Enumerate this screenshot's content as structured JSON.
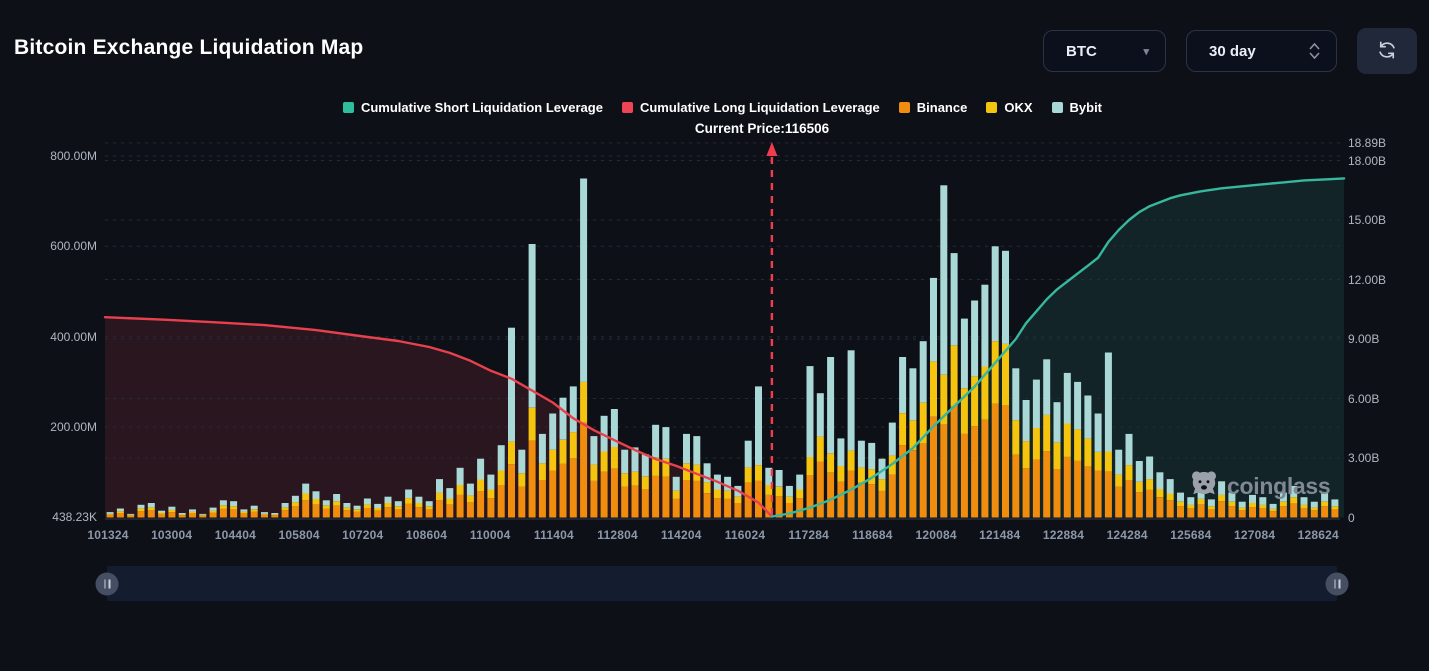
{
  "header": {
    "title": "Bitcoin Exchange Liquidation Map",
    "coin_select": {
      "value": "BTC"
    },
    "period_select": {
      "value": "30 day"
    }
  },
  "legend": {
    "items": [
      {
        "label": "Cumulative Short Liquidation Leverage",
        "color": "#2ebd9d"
      },
      {
        "label": "Cumulative Long Liquidation Leverage",
        "color": "#ef4455"
      },
      {
        "label": "Binance",
        "color": "#f18d0e"
      },
      {
        "label": "OKX",
        "color": "#f5c40f"
      },
      {
        "label": "Bybit",
        "color": "#a9d8d6"
      }
    ]
  },
  "watermark": {
    "text": "coinglass"
  },
  "colors": {
    "background": "#0d1117",
    "accent_red": "#f23c4d"
  },
  "chart_data": {
    "type": "bar",
    "title": "Bitcoin Exchange Liquidation Map",
    "current_price_label": "Current Price:116506",
    "current_price": 116506,
    "current_price_index": 64.3,
    "x_tick_labels": [
      "101324",
      "103004",
      "104404",
      "105804",
      "107204",
      "108604",
      "110004",
      "111404",
      "112804",
      "114204",
      "116024",
      "117284",
      "118684",
      "120084",
      "121484",
      "122884",
      "124284",
      "125684",
      "127084",
      "128624"
    ],
    "left_axis": {
      "labels": [
        "800.00M",
        "600.00M",
        "400.00M",
        "200.00M",
        "438.23K"
      ],
      "values_M": [
        800,
        600,
        400,
        200,
        0.44
      ]
    },
    "right_axis": {
      "labels": [
        "18.89B",
        "18.00B",
        "15.00B",
        "12.00B",
        "9.00B",
        "6.00B",
        "3.00B",
        "0"
      ],
      "values_B": [
        18.89,
        18,
        15,
        12,
        9,
        6,
        3,
        0
      ]
    },
    "grid_left_M": [
      800,
      600,
      400,
      200
    ],
    "grid_right_B": [
      18.89,
      18,
      15,
      12,
      9,
      6,
      3
    ],
    "ylim_left_M": [
      0,
      830
    ],
    "ylim_right_B": [
      0,
      18.89
    ],
    "series": [
      {
        "name": "Binance",
        "color": "#f18d0e",
        "values": [
          6,
          10,
          4,
          14,
          16,
          8,
          12,
          5,
          9,
          4,
          11,
          19,
          18,
          9,
          13,
          6,
          5,
          16,
          24,
          38,
          29,
          19,
          26,
          16,
          13,
          21,
          15,
          23,
          18,
          31,
          23,
          18,
          38,
          29,
          50,
          34,
          58,
          43,
          72,
          118,
          68,
          170,
          83,
          104,
          119,
          131,
          210,
          81,
          101,
          108,
          68,
          70,
          63,
          92,
          90,
          41,
          83,
          81,
          54,
          43,
          41,
          32,
          77,
          81,
          50,
          47,
          32,
          43,
          94,
          124,
          99,
          79,
          104,
          77,
          74,
          59,
          95,
          160,
          149,
          164,
          223,
          206,
          246,
          185,
          202,
          216,
          252,
          248,
          139,
          109,
          128,
          147,
          107,
          134,
          126,
          113,
          104,
          102,
          68,
          83,
          56,
          61,
          45,
          38,
          25,
          20,
          29,
          18,
          36,
          25,
          16,
          23,
          20,
          14,
          25,
          32,
          20,
          16,
          25,
          18
        ]
      },
      {
        "name": "OKX",
        "color": "#f5c40f",
        "values": [
          2,
          4,
          2,
          6,
          6,
          3,
          5,
          2,
          4,
          2,
          4,
          8,
          7,
          4,
          5,
          2,
          2,
          6,
          10,
          15,
          12,
          8,
          10,
          6,
          5,
          8,
          6,
          9,
          7,
          12,
          9,
          7,
          17,
          13,
          22,
          15,
          26,
          19,
          32,
          50,
          30,
          73,
          37,
          46,
          53,
          58,
          90,
          36,
          45,
          48,
          30,
          31,
          28,
          41,
          40,
          18,
          37,
          36,
          24,
          19,
          18,
          14,
          34,
          35,
          22,
          21,
          14,
          19,
          40,
          55,
          43,
          35,
          44,
          34,
          33,
          26,
          42,
          71,
          66,
          90,
          122,
          110,
          135,
          101,
          110,
          118,
          138,
          136,
          76,
          60,
          70,
          80,
          59,
          74,
          69,
          62,
          41,
          44,
          27,
          33,
          23,
          24,
          18,
          15,
          10,
          8,
          12,
          7,
          14,
          10,
          6,
          9,
          8,
          5,
          10,
          13,
          8,
          6,
          10,
          7
        ]
      },
      {
        "name": "Bybit",
        "color": "#a9d8d6",
        "values": [
          4,
          6,
          2,
          8,
          10,
          4,
          7,
          3,
          5,
          2,
          7,
          11,
          11,
          5,
          8,
          4,
          3,
          10,
          14,
          22,
          17,
          11,
          16,
          10,
          8,
          13,
          9,
          14,
          11,
          19,
          14,
          11,
          30,
          23,
          38,
          26,
          46,
          33,
          56,
          252,
          52,
          362,
          65,
          80,
          93,
          101,
          450,
          63,
          79,
          84,
          52,
          54,
          49,
          72,
          70,
          31,
          65,
          63,
          42,
          33,
          31,
          24,
          59,
          174,
          38,
          37,
          24,
          33,
          201,
          96,
          213,
          61,
          222,
          59,
          58,
          45,
          73,
          124,
          115,
          136,
          185,
          419,
          204,
          154,
          168,
          181,
          210,
          206,
          115,
          91,
          107,
          123,
          89,
          112,
          105,
          95,
          85,
          219,
          55,
          69,
          46,
          50,
          37,
          32,
          20,
          17,
          24,
          15,
          30,
          20,
          13,
          18,
          17,
          11,
          20,
          25,
          17,
          13,
          20,
          15
        ]
      }
    ],
    "lines": [
      {
        "name": "Cumulative Long Liquidation Leverage",
        "color": "#e8414d",
        "fill": "rgba(232,65,77,0.13)",
        "axis": "right",
        "points": [
          [
            -0.5,
            10.1
          ],
          [
            5,
            9.98
          ],
          [
            10,
            9.85
          ],
          [
            15,
            9.7
          ],
          [
            20,
            9.45
          ],
          [
            25,
            9.1
          ],
          [
            28,
            8.9
          ],
          [
            31,
            8.6
          ],
          [
            33,
            8.3
          ],
          [
            35,
            7.9
          ],
          [
            37,
            7.4
          ],
          [
            39,
            7.0
          ],
          [
            41,
            6.4
          ],
          [
            43,
            5.8
          ],
          [
            45,
            5.0
          ],
          [
            47,
            4.4
          ],
          [
            49,
            3.9
          ],
          [
            51,
            3.4
          ],
          [
            53,
            2.95
          ],
          [
            55,
            2.6
          ],
          [
            57,
            2.2
          ],
          [
            59,
            1.8
          ],
          [
            61,
            1.35
          ],
          [
            63,
            0.75
          ],
          [
            64.3,
            0.05
          ]
        ]
      },
      {
        "name": "Cumulative Short Liquidation Leverage",
        "color": "#37b79e",
        "fill": "rgba(55,183,158,0.12)",
        "axis": "right",
        "points": [
          [
            64.3,
            0.05
          ],
          [
            66,
            0.2
          ],
          [
            68,
            0.5
          ],
          [
            70,
            0.9
          ],
          [
            72,
            1.4
          ],
          [
            74,
            2.0
          ],
          [
            76,
            2.7
          ],
          [
            78,
            3.5
          ],
          [
            80,
            4.6
          ],
          [
            82,
            5.6
          ],
          [
            84,
            6.6
          ],
          [
            86,
            7.8
          ],
          [
            88,
            9.0
          ],
          [
            89,
            9.8
          ],
          [
            90,
            10.4
          ],
          [
            91,
            11.0
          ],
          [
            92,
            11.5
          ],
          [
            93,
            11.9
          ],
          [
            94,
            12.3
          ],
          [
            95,
            12.7
          ],
          [
            96,
            13.1
          ],
          [
            97,
            13.9
          ],
          [
            98,
            14.5
          ],
          [
            99,
            15.0
          ],
          [
            100,
            15.4
          ],
          [
            101,
            15.7
          ],
          [
            102,
            15.9
          ],
          [
            103,
            16.1
          ],
          [
            104,
            16.25
          ],
          [
            105,
            16.35
          ],
          [
            106,
            16.45
          ],
          [
            108,
            16.6
          ],
          [
            110,
            16.7
          ],
          [
            112,
            16.8
          ],
          [
            114,
            16.9
          ],
          [
            116,
            17.0
          ],
          [
            118,
            17.05
          ],
          [
            119.9,
            17.1
          ]
        ]
      }
    ]
  }
}
